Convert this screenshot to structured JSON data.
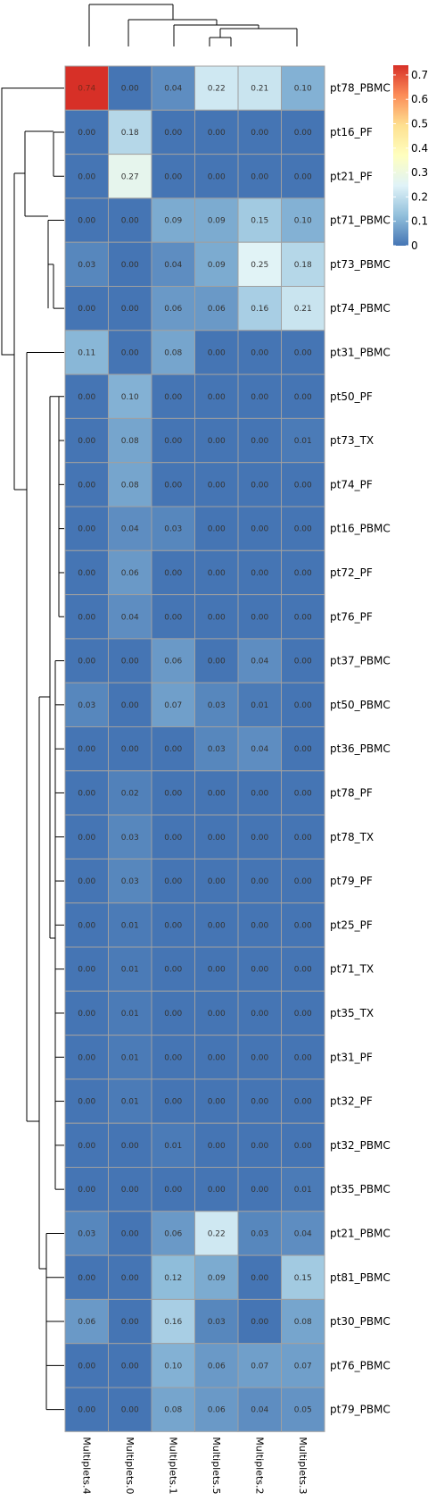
{
  "chart_data": {
    "type": "heatmap",
    "title": "",
    "columns": [
      "Multiplets.4",
      "Multiplets.0",
      "Multiplets.1",
      "Multiplets.5",
      "Multiplets.2",
      "Multiplets.3"
    ],
    "rows": [
      "pt78_PBMC",
      "pt16_PF",
      "pt21_PF",
      "pt71_PBMC",
      "pt73_PBMC",
      "pt74_PBMC",
      "pt31_PBMC",
      "pt50_PF",
      "pt73_TX",
      "pt74_PF",
      "pt16_PBMC",
      "pt72_PF",
      "pt76_PF",
      "pt37_PBMC",
      "pt50_PBMC",
      "pt36_PBMC",
      "pt78_PF",
      "pt78_TX",
      "pt79_PF",
      "pt25_PF",
      "pt71_TX",
      "pt35_TX",
      "pt31_PF",
      "pt32_PF",
      "pt32_PBMC",
      "pt35_PBMC",
      "pt21_PBMC",
      "pt81_PBMC",
      "pt30_PBMC",
      "pt76_PBMC",
      "pt79_PBMC"
    ],
    "values": [
      [
        0.74,
        0.0,
        0.04,
        0.22,
        0.21,
        0.1
      ],
      [
        0.0,
        0.18,
        0.0,
        0.0,
        0.0,
        0.0
      ],
      [
        0.0,
        0.27,
        0.0,
        0.0,
        0.0,
        0.0
      ],
      [
        0.0,
        0.0,
        0.09,
        0.09,
        0.15,
        0.1
      ],
      [
        0.03,
        0.0,
        0.04,
        0.09,
        0.25,
        0.18
      ],
      [
        0.0,
        0.0,
        0.06,
        0.06,
        0.16,
        0.21
      ],
      [
        0.11,
        0.0,
        0.08,
        0.0,
        0.0,
        0.0
      ],
      [
        0.0,
        0.1,
        0.0,
        0.0,
        0.0,
        0.0
      ],
      [
        0.0,
        0.08,
        0.0,
        0.0,
        0.0,
        0.01
      ],
      [
        0.0,
        0.08,
        0.0,
        0.0,
        0.0,
        0.0
      ],
      [
        0.0,
        0.04,
        0.03,
        0.0,
        0.0,
        0.0
      ],
      [
        0.0,
        0.06,
        0.0,
        0.0,
        0.0,
        0.0
      ],
      [
        0.0,
        0.04,
        0.0,
        0.0,
        0.0,
        0.0
      ],
      [
        0.0,
        0.0,
        0.06,
        0.0,
        0.04,
        0.0
      ],
      [
        0.03,
        0.0,
        0.07,
        0.03,
        0.01,
        0.0
      ],
      [
        0.0,
        0.0,
        0.0,
        0.03,
        0.04,
        0.0
      ],
      [
        0.0,
        0.02,
        0.0,
        0.0,
        0.0,
        0.0
      ],
      [
        0.0,
        0.03,
        0.0,
        0.0,
        0.0,
        0.0
      ],
      [
        0.0,
        0.03,
        0.0,
        0.0,
        0.0,
        0.0
      ],
      [
        0.0,
        0.01,
        0.0,
        0.0,
        0.0,
        0.0
      ],
      [
        0.0,
        0.01,
        0.0,
        0.0,
        0.0,
        0.0
      ],
      [
        0.0,
        0.01,
        0.0,
        0.0,
        0.0,
        0.0
      ],
      [
        0.0,
        0.01,
        0.0,
        0.0,
        0.0,
        0.0
      ],
      [
        0.0,
        0.01,
        0.0,
        0.0,
        0.0,
        0.0
      ],
      [
        0.0,
        0.0,
        0.01,
        0.0,
        0.0,
        0.0
      ],
      [
        0.0,
        0.0,
        0.0,
        0.0,
        0.0,
        0.01
      ],
      [
        0.03,
        0.0,
        0.06,
        0.22,
        0.03,
        0.04
      ],
      [
        0.0,
        0.0,
        0.12,
        0.09,
        0.0,
        0.15
      ],
      [
        0.06,
        0.0,
        0.16,
        0.03,
        0.0,
        0.08
      ],
      [
        0.0,
        0.0,
        0.1,
        0.06,
        0.07,
        0.07
      ],
      [
        0.0,
        0.0,
        0.08,
        0.06,
        0.04,
        0.05
      ]
    ],
    "value_range": [
      0,
      0.74
    ],
    "legend": {
      "position": "top-right",
      "ticks": [
        0,
        0.1,
        0.2,
        0.3,
        0.4,
        0.5,
        0.6,
        0.7
      ],
      "tick_labels": [
        "0",
        "0.1",
        "0.2",
        "0.3",
        "0.4",
        "0.5",
        "0.6",
        "0.7"
      ]
    },
    "color_scale": [
      "#4575b4",
      "#91bfdb",
      "#e0f3f8",
      "#ffffbf",
      "#fee090",
      "#fc8d59",
      "#d73027"
    ],
    "cell_border_color": "#a0a0a0",
    "dendrograms": {
      "rows": true,
      "columns": true
    }
  }
}
